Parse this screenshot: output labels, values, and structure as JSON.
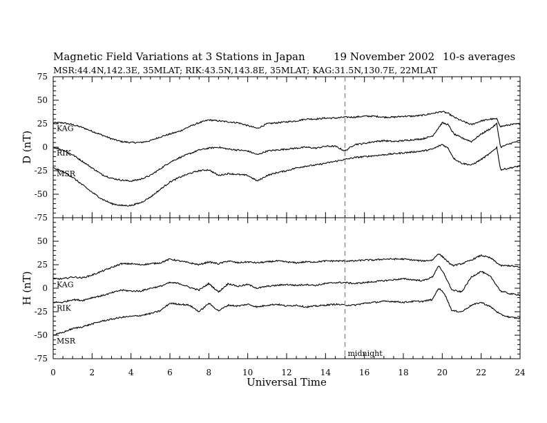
{
  "header": {
    "title": "Magnetic Field Variations at 3 Stations in Japan",
    "date": "19 November 2002",
    "averaging": "10-s averages",
    "stations_line": "MSR:44.4N,142.3E, 35MLAT;  RIK:43.5N,143.8E, 35MLAT;  KAG:31.5N,130.7E, 22MLAT"
  },
  "chart_data": {
    "type": "line",
    "xlabel": "Universal Time",
    "xlim": [
      0,
      24
    ],
    "x_ticks": [
      "0",
      "2",
      "4",
      "6",
      "8",
      "10",
      "12",
      "14",
      "16",
      "18",
      "20",
      "22",
      "24"
    ],
    "y_ticks": [
      "75",
      "50",
      "25",
      "0",
      "-25",
      "-50",
      "-75"
    ],
    "vline": {
      "x": 15,
      "label": "midnight"
    },
    "panels": [
      {
        "ylabel": "D (nT)",
        "ylim": [
          -75,
          75
        ],
        "series": [
          {
            "name": "KAG",
            "x": [
              0,
              0.5,
              1,
              1.5,
              2,
              2.5,
              3,
              3.5,
              4,
              4.5,
              5,
              5.5,
              6,
              6.5,
              7,
              7.5,
              8,
              8.5,
              9,
              9.5,
              10,
              10.5,
              11,
              11.5,
              12,
              12.5,
              13,
              13.5,
              14,
              14.5,
              15,
              15.5,
              16,
              16.5,
              17,
              17.5,
              18,
              18.5,
              19,
              19.5,
              20,
              20.3,
              20.6,
              21,
              21.5,
              22,
              22.5,
              22.8,
              23,
              23.5,
              24
            ],
            "values": [
              26,
              26,
              24,
              21,
              17,
              13,
              9,
              6,
              5,
              5,
              7,
              11,
              14,
              17,
              22,
              26,
              29,
              28,
              27,
              26,
              23,
              20,
              25,
              26,
              27,
              28,
              30,
              30,
              31,
              31,
              32,
              32,
              33,
              33,
              32,
              32,
              33,
              33,
              34,
              36,
              38,
              36,
              32,
              28,
              24,
              28,
              30,
              30,
              22,
              24,
              25
            ]
          },
          {
            "name": "RIK",
            "x": [
              0,
              0.5,
              1,
              1.5,
              2,
              2.5,
              3,
              3.5,
              4,
              4.5,
              5,
              5.5,
              6,
              6.5,
              7,
              7.5,
              8,
              8.5,
              9,
              9.5,
              10,
              10.5,
              11,
              11.5,
              12,
              12.5,
              13,
              13.5,
              14,
              14.5,
              15,
              15.5,
              16,
              16.5,
              17,
              17.5,
              18,
              18.5,
              19,
              19.5,
              20,
              20.3,
              20.6,
              21,
              21.5,
              22,
              22.5,
              22.8,
              23,
              23.5,
              24
            ],
            "values": [
              0,
              -3,
              -8,
              -15,
              -22,
              -29,
              -33,
              -35,
              -36,
              -34,
              -30,
              -23,
              -16,
              -11,
              -7,
              -3,
              -1,
              0,
              -2,
              -3,
              -4,
              -8,
              -4,
              -3,
              -2,
              -1,
              0,
              -1,
              1,
              1,
              -4,
              3,
              4,
              6,
              7,
              6,
              7,
              8,
              9,
              12,
              26,
              24,
              14,
              10,
              6,
              14,
              20,
              25,
              0,
              4,
              7
            ]
          },
          {
            "name": "MSR",
            "x": [
              0,
              0.5,
              1,
              1.5,
              2,
              2.5,
              3,
              3.5,
              4,
              4.5,
              5,
              5.5,
              6,
              6.5,
              7,
              7.5,
              8,
              8.5,
              9,
              9.5,
              10,
              10.5,
              11,
              11.5,
              12,
              12.5,
              13,
              13.5,
              14,
              14.5,
              15,
              15.5,
              16,
              16.5,
              17,
              17.5,
              18,
              18.5,
              19,
              19.5,
              20,
              20.3,
              20.6,
              21,
              21.5,
              22,
              22.5,
              22.8,
              23,
              23.5,
              24
            ],
            "values": [
              -22,
              -26,
              -32,
              -40,
              -48,
              -55,
              -60,
              -62,
              -62,
              -59,
              -53,
              -45,
              -37,
              -32,
              -28,
              -25,
              -24,
              -30,
              -28,
              -29,
              -30,
              -36,
              -30,
              -27,
              -25,
              -22,
              -20,
              -19,
              -17,
              -15,
              -13,
              -11,
              -10,
              -9,
              -8,
              -7,
              -6,
              -5,
              -4,
              -2,
              3,
              -1,
              -12,
              -17,
              -19,
              -13,
              -6,
              0,
              -24,
              -22,
              -20
            ]
          }
        ]
      },
      {
        "ylabel": "H (nT)",
        "ylim": [
          -75,
          75
        ],
        "series": [
          {
            "name": "KAG",
            "x": [
              0,
              0.5,
              1,
              1.5,
              2,
              2.5,
              3,
              3.5,
              4,
              4.5,
              5,
              5.5,
              6,
              6.5,
              7,
              7.5,
              8,
              8.5,
              9,
              9.5,
              10,
              10.5,
              11,
              11.5,
              12,
              12.5,
              13,
              13.5,
              14,
              14.5,
              15,
              15.5,
              16,
              16.5,
              17,
              17.5,
              18,
              18.5,
              19,
              19.5,
              19.8,
              20.1,
              20.5,
              21,
              21.5,
              22,
              22.5,
              23,
              23.5,
              24
            ],
            "values": [
              10,
              10,
              12,
              11,
              14,
              18,
              22,
              26,
              26,
              25,
              26,
              27,
              31,
              29,
              27,
              25,
              28,
              26,
              29,
              27,
              28,
              27,
              28,
              29,
              28,
              27,
              28,
              28,
              29,
              29,
              29,
              29,
              30,
              30,
              31,
              31,
              31,
              30,
              29,
              30,
              37,
              32,
              24,
              26,
              30,
              35,
              32,
              24,
              24,
              22
            ]
          },
          {
            "name": "RIK",
            "x": [
              0,
              0.5,
              1,
              1.5,
              2,
              2.5,
              3,
              3.5,
              4,
              4.5,
              5,
              5.5,
              6,
              6.5,
              7,
              7.5,
              8,
              8.5,
              9,
              9.5,
              10,
              10.5,
              11,
              11.5,
              12,
              12.5,
              13,
              13.5,
              14,
              14.5,
              15,
              15.5,
              16,
              16.5,
              17,
              17.5,
              18,
              18.5,
              19,
              19.5,
              19.8,
              20.1,
              20.5,
              21,
              21.5,
              22,
              22.5,
              23,
              23.5,
              24
            ],
            "values": [
              -15,
              -15,
              -12,
              -13,
              -10,
              -8,
              -5,
              -2,
              -3,
              -3,
              0,
              2,
              6,
              5,
              1,
              -2,
              5,
              -4,
              5,
              2,
              4,
              0,
              2,
              3,
              4,
              3,
              4,
              3,
              5,
              6,
              6,
              5,
              6,
              7,
              8,
              9,
              10,
              9,
              8,
              12,
              24,
              15,
              -2,
              -4,
              12,
              18,
              12,
              -3,
              -6,
              -7
            ]
          },
          {
            "name": "MSR",
            "x": [
              0,
              0.5,
              1,
              1.5,
              2,
              2.5,
              3,
              3.5,
              4,
              4.5,
              5,
              5.5,
              6,
              6.5,
              7,
              7.5,
              8,
              8.5,
              9,
              9.5,
              10,
              10.5,
              11,
              11.5,
              12,
              12.5,
              13,
              13.5,
              14,
              14.5,
              15,
              15.5,
              16,
              16.5,
              17,
              17.5,
              18,
              18.5,
              19,
              19.5,
              19.8,
              20.1,
              20.5,
              21,
              21.5,
              22,
              22.5,
              23,
              23.5,
              24
            ],
            "values": [
              -50,
              -47,
              -43,
              -41,
              -38,
              -35,
              -33,
              -31,
              -30,
              -29,
              -27,
              -24,
              -16,
              -17,
              -18,
              -25,
              -16,
              -24,
              -18,
              -19,
              -17,
              -20,
              -18,
              -17,
              -19,
              -18,
              -20,
              -19,
              -18,
              -17,
              -18,
              -18,
              -16,
              -15,
              -14,
              -14,
              -15,
              -14,
              -14,
              -12,
              0,
              -5,
              -24,
              -25,
              -18,
              -15,
              -20,
              -28,
              -31,
              -32
            ]
          }
        ]
      }
    ]
  }
}
